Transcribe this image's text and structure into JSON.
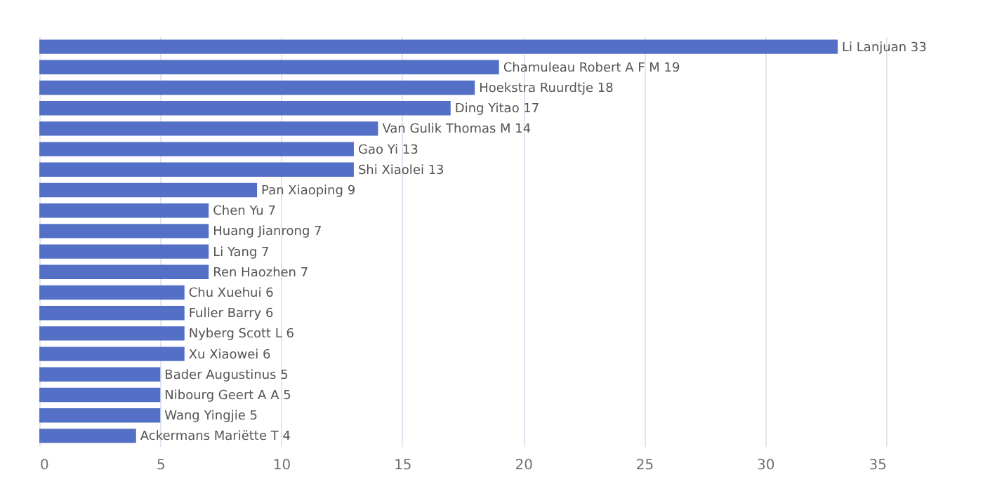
{
  "chart_data": {
    "type": "bar",
    "orientation": "horizontal",
    "categories": [
      "Li Lanjuan 33",
      "Chamuleau Robert A F M 19",
      "Hoekstra Ruurdtje 18",
      "Ding Yitao 17",
      "Van Gulik Thomas M 14",
      "Gao Yi 13",
      "Shi Xiaolei 13",
      "Pan Xiaoping 9",
      "Chen Yu 7",
      "Huang Jianrong 7",
      "Li Yang 7",
      "Ren Haozhen 7",
      "Chu Xuehui 6",
      "Fuller Barry 6",
      "Nyberg Scott L 6",
      "Xu Xiaowei 6",
      "Bader Augustinus 5",
      "Nibourg Geert A A 5",
      "Wang Yingjie 5",
      "Ackermans Mariëtte T 4"
    ],
    "values": [
      33,
      19,
      18,
      17,
      14,
      13,
      13,
      9,
      7,
      7,
      7,
      7,
      6,
      6,
      6,
      6,
      5,
      5,
      5,
      4
    ],
    "color": "#5470c6",
    "xlim": [
      0,
      35
    ],
    "xticks": [
      0,
      5,
      10,
      15,
      20,
      25,
      30,
      35
    ],
    "grid": "x",
    "tick_labels": "x"
  }
}
